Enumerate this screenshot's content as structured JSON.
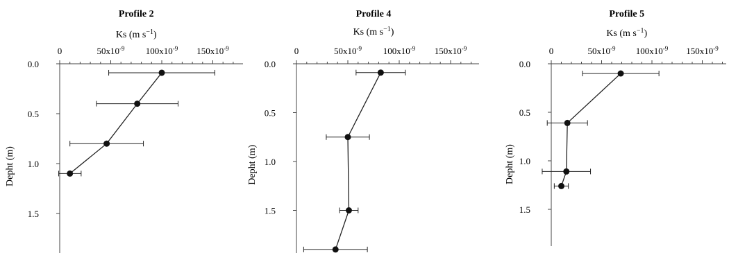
{
  "chart_data": [
    {
      "type": "scatter",
      "title": "Profile  2",
      "xlabel": "Ks (m s",
      "xlabel_exp": "−1",
      "xlabel_close": ")",
      "ylabel": "Depht (m)",
      "xlim": [
        0,
        180
      ],
      "ylim": [
        0,
        1.9
      ],
      "x_ticks": [
        0,
        50,
        100,
        150
      ],
      "x_tick_labels": [
        "0",
        "50x10",
        "100x10",
        "150x10"
      ],
      "x_tick_exp": "-9",
      "y_ticks": [
        0.0,
        0.5,
        1.0,
        1.5
      ],
      "y_tick_labels": [
        "0.0",
        "0.5",
        "1.0",
        "1.5"
      ],
      "inverted_y": true,
      "series": [
        {
          "points": [
            {
              "x": 100,
              "y": 0.09,
              "err": 52
            },
            {
              "x": 76,
              "y": 0.4,
              "err": 40
            },
            {
              "x": 46,
              "y": 0.8,
              "err": 36
            },
            {
              "x": 10,
              "y": 1.1,
              "err": 11
            }
          ]
        }
      ]
    },
    {
      "type": "scatter",
      "title": "Profile 4",
      "xlabel": "Ks (m s",
      "xlabel_exp": "−1",
      "xlabel_close": ")",
      "ylabel": "Depht (m)",
      "xlim": [
        0,
        180
      ],
      "ylim": [
        0,
        1.9
      ],
      "x_ticks": [
        0,
        50,
        100,
        150
      ],
      "x_tick_labels": [
        "0",
        "50x10",
        "100x10",
        "150x10"
      ],
      "x_tick_exp": "-9",
      "y_ticks": [
        0.0,
        0.5,
        1.0,
        1.5
      ],
      "y_tick_labels": [
        "0.0",
        "0.5",
        "1.0",
        "1.5"
      ],
      "inverted_y": true,
      "series": [
        {
          "points": [
            {
              "x": 82,
              "y": 0.09,
              "err": 24
            },
            {
              "x": 50,
              "y": 0.75,
              "err": 21
            },
            {
              "x": 51,
              "y": 1.5,
              "err": 9
            },
            {
              "x": 38,
              "y": 1.9,
              "err": 31
            }
          ]
        }
      ]
    },
    {
      "type": "scatter",
      "title": "Profile 5",
      "xlabel": "Ks (m s",
      "xlabel_exp": "−1",
      "xlabel_close": ")",
      "ylabel": "Depht (m)",
      "xlim": [
        0,
        180
      ],
      "ylim": [
        0,
        1.9
      ],
      "x_ticks": [
        0,
        50,
        100,
        150
      ],
      "x_tick_labels": [
        "0",
        "50x10",
        "100x10",
        "150x10"
      ],
      "x_tick_exp": "-9",
      "y_ticks": [
        0.0,
        0.5,
        1.0,
        1.5
      ],
      "y_tick_labels": [
        "0.0",
        "0.5",
        "1.0",
        "1.5"
      ],
      "inverted_y": true,
      "series": [
        {
          "points": [
            {
              "x": 69,
              "y": 0.1,
              "err": 38
            },
            {
              "x": 16,
              "y": 0.61,
              "err": 20
            },
            {
              "x": 15,
              "y": 1.11,
              "err": 24
            },
            {
              "x": 10,
              "y": 1.26,
              "err": 7
            }
          ]
        }
      ]
    }
  ]
}
